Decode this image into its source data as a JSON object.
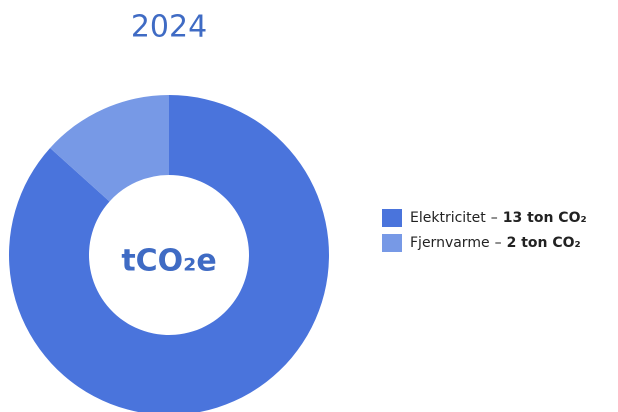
{
  "chart_data": {
    "type": "donut",
    "title": "2024",
    "center_label": "tCO₂e",
    "categories": [
      "Elektricitet",
      "Fjernvarme"
    ],
    "values": [
      13,
      2
    ],
    "value_labels": [
      "13 ton CO₂",
      "2 ton CO₂"
    ],
    "separator": "–",
    "colors": [
      "#4a74dc",
      "#7799e6"
    ]
  }
}
